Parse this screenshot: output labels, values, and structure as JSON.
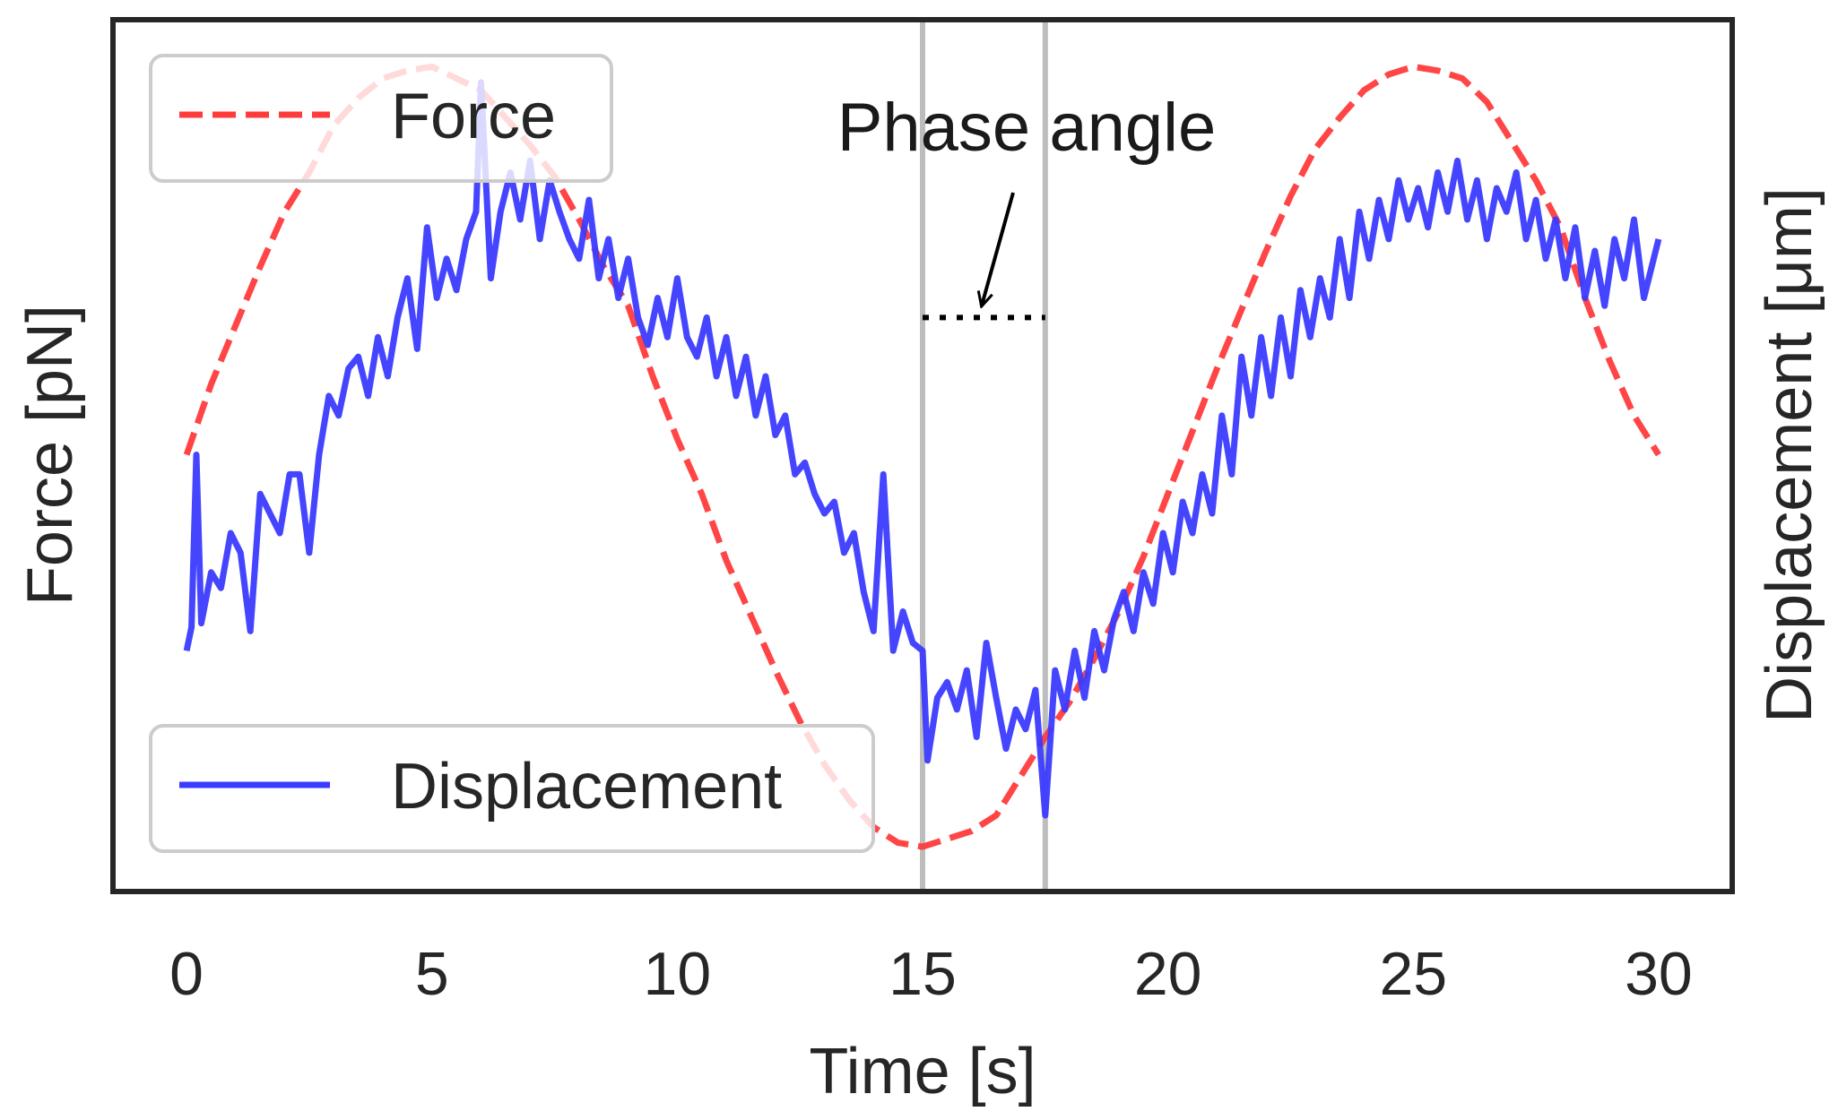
{
  "chart_data": {
    "type": "line",
    "title": "",
    "xlabel": "Time [s]",
    "ylabel_left": "Force [pN]",
    "ylabel_right": "Displacement [μm]",
    "xlim": [
      -1.5,
      31.5
    ],
    "x_ticks": [
      0,
      5,
      10,
      15,
      20,
      25,
      30
    ],
    "y_ticks_shown": false,
    "grid": false,
    "series": [
      {
        "name": "Force",
        "style": "dashed",
        "color": "#ff3b3b",
        "points": [
          [
            0,
            0.0
          ],
          [
            0.5,
            0.18
          ],
          [
            1,
            0.33
          ],
          [
            1.5,
            0.48
          ],
          [
            2,
            0.62
          ],
          [
            2.5,
            0.72
          ],
          [
            3,
            0.84
          ],
          [
            3.5,
            0.91
          ],
          [
            4,
            0.96
          ],
          [
            4.5,
            0.98
          ],
          [
            5,
            0.99
          ],
          [
            5.5,
            0.96
          ],
          [
            6,
            0.93
          ],
          [
            6.5,
            0.86
          ],
          [
            7,
            0.79
          ],
          [
            7.5,
            0.71
          ],
          [
            8,
            0.6
          ],
          [
            8.5,
            0.48
          ],
          [
            9,
            0.38
          ],
          [
            9.5,
            0.2
          ],
          [
            10,
            0.04
          ],
          [
            10.5,
            -0.1
          ],
          [
            11,
            -0.27
          ],
          [
            11.5,
            -0.41
          ],
          [
            12,
            -0.55
          ],
          [
            12.5,
            -0.68
          ],
          [
            13,
            -0.79
          ],
          [
            13.5,
            -0.88
          ],
          [
            14,
            -0.95
          ],
          [
            14.5,
            -0.99
          ],
          [
            15,
            -1.0
          ],
          [
            15.5,
            -0.98
          ],
          [
            16,
            -0.96
          ],
          [
            16.5,
            -0.92
          ],
          [
            17,
            -0.82
          ],
          [
            17.5,
            -0.72
          ],
          [
            18,
            -0.63
          ],
          [
            18.5,
            -0.52
          ],
          [
            19,
            -0.4
          ],
          [
            19.5,
            -0.26
          ],
          [
            20,
            -0.1
          ],
          [
            20.5,
            0.06
          ],
          [
            21,
            0.22
          ],
          [
            21.5,
            0.37
          ],
          [
            22,
            0.52
          ],
          [
            22.5,
            0.66
          ],
          [
            23,
            0.78
          ],
          [
            23.5,
            0.86
          ],
          [
            24,
            0.93
          ],
          [
            24.5,
            0.97
          ],
          [
            25,
            0.99
          ],
          [
            25.5,
            0.98
          ],
          [
            26,
            0.96
          ],
          [
            26.5,
            0.9
          ],
          [
            27,
            0.8
          ],
          [
            27.5,
            0.7
          ],
          [
            28,
            0.58
          ],
          [
            28.5,
            0.4
          ],
          [
            29,
            0.24
          ],
          [
            29.5,
            0.1
          ],
          [
            30,
            0.0
          ]
        ]
      },
      {
        "name": "Displacement",
        "style": "solid",
        "color": "#3b3bff",
        "points": [
          [
            0,
            -0.5
          ],
          [
            0.1,
            -0.44
          ],
          [
            0.2,
            0.0
          ],
          [
            0.3,
            -0.43
          ],
          [
            0.5,
            -0.3
          ],
          [
            0.7,
            -0.34
          ],
          [
            0.9,
            -0.2
          ],
          [
            1.1,
            -0.25
          ],
          [
            1.3,
            -0.45
          ],
          [
            1.5,
            -0.1
          ],
          [
            1.7,
            -0.15
          ],
          [
            1.9,
            -0.2
          ],
          [
            2.1,
            -0.05
          ],
          [
            2.3,
            -0.05
          ],
          [
            2.5,
            -0.25
          ],
          [
            2.7,
            0.0
          ],
          [
            2.9,
            0.15
          ],
          [
            3.1,
            0.1
          ],
          [
            3.3,
            0.22
          ],
          [
            3.5,
            0.25
          ],
          [
            3.7,
            0.15
          ],
          [
            3.9,
            0.3
          ],
          [
            4.1,
            0.2
          ],
          [
            4.3,
            0.35
          ],
          [
            4.5,
            0.45
          ],
          [
            4.7,
            0.27
          ],
          [
            4.9,
            0.58
          ],
          [
            5.1,
            0.4
          ],
          [
            5.3,
            0.5
          ],
          [
            5.5,
            0.42
          ],
          [
            5.7,
            0.55
          ],
          [
            5.9,
            0.62
          ],
          [
            6.0,
            0.95
          ],
          [
            6.2,
            0.45
          ],
          [
            6.4,
            0.62
          ],
          [
            6.6,
            0.72
          ],
          [
            6.8,
            0.6
          ],
          [
            7.0,
            0.75
          ],
          [
            7.2,
            0.55
          ],
          [
            7.4,
            0.7
          ],
          [
            7.6,
            0.62
          ],
          [
            7.8,
            0.55
          ],
          [
            8.0,
            0.5
          ],
          [
            8.2,
            0.65
          ],
          [
            8.4,
            0.45
          ],
          [
            8.6,
            0.55
          ],
          [
            8.8,
            0.4
          ],
          [
            9.0,
            0.5
          ],
          [
            9.2,
            0.35
          ],
          [
            9.4,
            0.28
          ],
          [
            9.6,
            0.4
          ],
          [
            9.8,
            0.3
          ],
          [
            10.0,
            0.45
          ],
          [
            10.2,
            0.3
          ],
          [
            10.4,
            0.25
          ],
          [
            10.6,
            0.35
          ],
          [
            10.8,
            0.2
          ],
          [
            11.0,
            0.3
          ],
          [
            11.2,
            0.15
          ],
          [
            11.4,
            0.25
          ],
          [
            11.6,
            0.1
          ],
          [
            11.8,
            0.2
          ],
          [
            12.0,
            0.05
          ],
          [
            12.2,
            0.1
          ],
          [
            12.4,
            -0.05
          ],
          [
            12.6,
            -0.02
          ],
          [
            12.8,
            -0.1
          ],
          [
            13.0,
            -0.15
          ],
          [
            13.2,
            -0.12
          ],
          [
            13.4,
            -0.25
          ],
          [
            13.6,
            -0.2
          ],
          [
            13.8,
            -0.35
          ],
          [
            14.0,
            -0.45
          ],
          [
            14.2,
            -0.05
          ],
          [
            14.4,
            -0.5
          ],
          [
            14.6,
            -0.4
          ],
          [
            14.8,
            -0.48
          ],
          [
            15.0,
            -0.5
          ],
          [
            15.1,
            -0.78
          ],
          [
            15.3,
            -0.62
          ],
          [
            15.5,
            -0.58
          ],
          [
            15.7,
            -0.65
          ],
          [
            15.9,
            -0.55
          ],
          [
            16.1,
            -0.72
          ],
          [
            16.3,
            -0.48
          ],
          [
            16.5,
            -0.62
          ],
          [
            16.7,
            -0.75
          ],
          [
            16.9,
            -0.65
          ],
          [
            17.1,
            -0.7
          ],
          [
            17.3,
            -0.6
          ],
          [
            17.5,
            -0.92
          ],
          [
            17.7,
            -0.55
          ],
          [
            17.9,
            -0.65
          ],
          [
            18.1,
            -0.5
          ],
          [
            18.3,
            -0.62
          ],
          [
            18.5,
            -0.45
          ],
          [
            18.7,
            -0.55
          ],
          [
            18.9,
            -0.42
          ],
          [
            19.1,
            -0.35
          ],
          [
            19.3,
            -0.45
          ],
          [
            19.5,
            -0.3
          ],
          [
            19.7,
            -0.38
          ],
          [
            19.9,
            -0.2
          ],
          [
            20.1,
            -0.3
          ],
          [
            20.3,
            -0.12
          ],
          [
            20.5,
            -0.2
          ],
          [
            20.7,
            -0.05
          ],
          [
            20.9,
            -0.15
          ],
          [
            21.1,
            0.1
          ],
          [
            21.3,
            -0.05
          ],
          [
            21.5,
            0.25
          ],
          [
            21.7,
            0.1
          ],
          [
            21.9,
            0.3
          ],
          [
            22.1,
            0.15
          ],
          [
            22.3,
            0.35
          ],
          [
            22.5,
            0.2
          ],
          [
            22.7,
            0.42
          ],
          [
            22.9,
            0.3
          ],
          [
            23.1,
            0.45
          ],
          [
            23.3,
            0.35
          ],
          [
            23.5,
            0.55
          ],
          [
            23.7,
            0.4
          ],
          [
            23.9,
            0.62
          ],
          [
            24.1,
            0.5
          ],
          [
            24.3,
            0.65
          ],
          [
            24.5,
            0.55
          ],
          [
            24.7,
            0.7
          ],
          [
            24.9,
            0.6
          ],
          [
            25.1,
            0.68
          ],
          [
            25.3,
            0.58
          ],
          [
            25.5,
            0.72
          ],
          [
            25.7,
            0.62
          ],
          [
            25.9,
            0.75
          ],
          [
            26.1,
            0.6
          ],
          [
            26.3,
            0.7
          ],
          [
            26.5,
            0.55
          ],
          [
            26.7,
            0.68
          ],
          [
            26.9,
            0.62
          ],
          [
            27.1,
            0.72
          ],
          [
            27.3,
            0.55
          ],
          [
            27.5,
            0.65
          ],
          [
            27.7,
            0.5
          ],
          [
            27.9,
            0.6
          ],
          [
            28.1,
            0.45
          ],
          [
            28.3,
            0.58
          ],
          [
            28.5,
            0.4
          ],
          [
            28.7,
            0.52
          ],
          [
            28.9,
            0.38
          ],
          [
            29.1,
            0.55
          ],
          [
            29.3,
            0.45
          ],
          [
            29.5,
            0.6
          ],
          [
            29.7,
            0.4
          ],
          [
            30.0,
            0.55
          ]
        ]
      }
    ],
    "reference_lines": {
      "vertical_x": [
        15.0,
        17.5
      ],
      "color": "#bdbdbd",
      "dotted_segment": {
        "x_start": 15.0,
        "x_end": 17.5,
        "y": 0.35
      }
    },
    "annotation": {
      "text": "Phase angle",
      "arrow_target": [
        16.2,
        0.36
      ]
    },
    "legends": [
      {
        "entry": "Force",
        "placement": "top-left"
      },
      {
        "entry": "Displacement",
        "placement": "bottom-left"
      }
    ]
  }
}
